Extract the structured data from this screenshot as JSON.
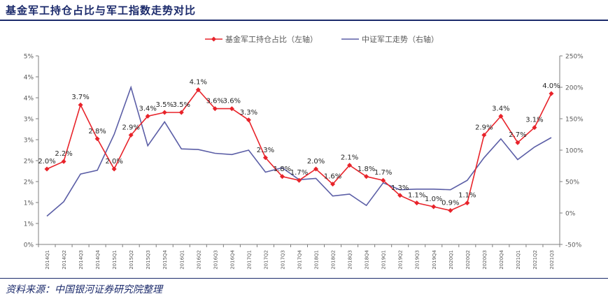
{
  "figure": {
    "title": "基金军工持仓占比与军工指数走势对比",
    "source": "资料来源：中国银河证券研究院整理"
  },
  "colors": {
    "red": "#e8232a",
    "blue": "#5b5ea6",
    "axis": "#7f7f7f",
    "text": "#595959"
  },
  "chart_data": {
    "type": "line",
    "categories": [
      "2014Q1",
      "2014Q2",
      "2014Q3",
      "2014Q4",
      "2015Q1",
      "2015Q2",
      "2015Q3",
      "2015Q4",
      "2016Q1",
      "2016Q2",
      "2016Q3",
      "2016Q4",
      "2017Q1",
      "2017Q2",
      "2017Q3",
      "2017Q4",
      "2018Q1",
      "2018Q2",
      "2018Q3",
      "2018Q4",
      "2019Q1",
      "2019Q2",
      "2019Q3",
      "2019Q4",
      "2020Q1",
      "2020Q2",
      "2020Q3",
      "2020Q4",
      "2021Q1",
      "2021Q2",
      "2021Q3"
    ],
    "y_left": {
      "ticks": [
        "0%",
        "1%",
        "1%",
        "2%",
        "2%",
        "3%",
        "3%",
        "4%",
        "4%",
        "5%"
      ],
      "ylim": [
        0,
        5
      ]
    },
    "y_right": {
      "ticks": [
        "-50%",
        "0%",
        "50%",
        "100%",
        "150%",
        "200%",
        "250%"
      ],
      "ylim": [
        -50,
        250
      ]
    },
    "series": [
      {
        "name": "基金军工持仓占比（左轴）",
        "axis": "left",
        "values": [
          2.0,
          2.2,
          3.7,
          2.8,
          2.0,
          2.9,
          3.4,
          3.5,
          3.5,
          4.1,
          3.6,
          3.6,
          3.3,
          2.3,
          1.8,
          1.7,
          2.0,
          1.6,
          2.1,
          1.8,
          1.7,
          1.3,
          1.1,
          1.0,
          0.9,
          1.1,
          2.9,
          3.4,
          2.7,
          3.1,
          4.0
        ],
        "labels": [
          "2.0%",
          "2.2%",
          "3.7%",
          "2.8%",
          "2.0%",
          "2.9%",
          "3.4%",
          "3.5%",
          "3.5%",
          "4.1%",
          "3.6%",
          "3.6%",
          "3.3%",
          "2.3%",
          "1.8%",
          "1.7%",
          "2.0%",
          "1.6%",
          "2.1%",
          "1.8%",
          "1.7%",
          "1.3%",
          "1.1%",
          "1.0%",
          "0.9%",
          "1.1%",
          "2.9%",
          "3.4%",
          "2.7%",
          "3.1%",
          "4.0%"
        ]
      },
      {
        "name": "中证军工走势（右轴）",
        "axis": "right",
        "values": [
          -5,
          18,
          62,
          68,
          125,
          200,
          107,
          145,
          102,
          101,
          95,
          93,
          100,
          65,
          72,
          53,
          55,
          27,
          30,
          12,
          48,
          37,
          38,
          38,
          37,
          52,
          88,
          118,
          85,
          105,
          120
        ]
      }
    ],
    "legend": "top-center"
  }
}
